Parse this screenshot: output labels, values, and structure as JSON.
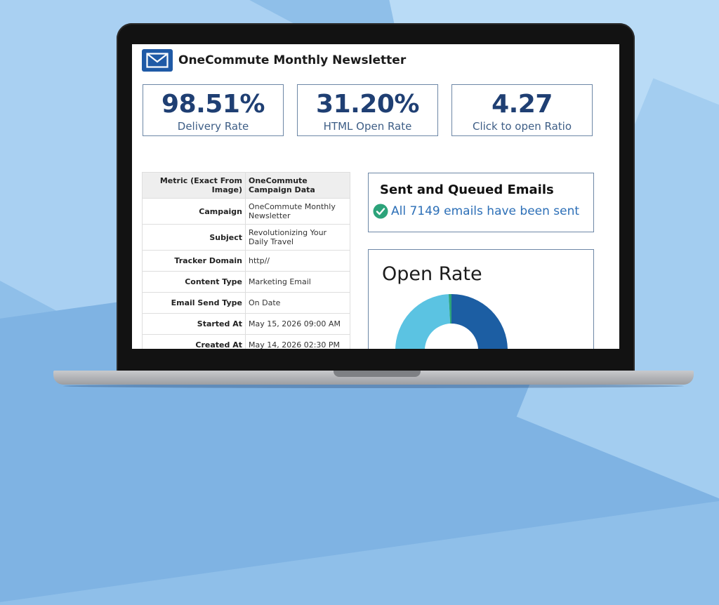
{
  "header": {
    "title": "OneCommute Monthly Newsletter"
  },
  "stats": [
    {
      "value": "98.51%",
      "label": "Delivery Rate"
    },
    {
      "value": "31.20%",
      "label": "HTML Open Rate"
    },
    {
      "value": "4.27",
      "label": "Click to open Ratio"
    }
  ],
  "table": {
    "headers": [
      "Metric (Exact From Image)",
      "OneCommute Campaign Data"
    ],
    "rows": [
      {
        "key": "Campaign",
        "value": "OneCommute Monthly Newsletter"
      },
      {
        "key": "Subject",
        "value": "Revolutionizing Your Daily Travel"
      },
      {
        "key": "Tracker Domain",
        "value": "http//"
      },
      {
        "key": "Content Type",
        "value": "Marketing Email"
      },
      {
        "key": "Email Send Type",
        "value": "On Date"
      },
      {
        "key": "Started At",
        "value": "May 15, 2026 09:00 AM"
      },
      {
        "key": "Created At",
        "value": "May 14, 2026 02:30 PM"
      }
    ]
  },
  "sent_card": {
    "title": "Sent and Queued Emails",
    "status": "All 7149 emails have been sent"
  },
  "open_rate_card": {
    "title": "Open Rate"
  },
  "chart_data": {
    "type": "pie",
    "title": "Open Rate",
    "slices": [
      {
        "value": 50,
        "color": "#1c5ea3"
      },
      {
        "value": 49.2,
        "color": "#5bc3e2"
      },
      {
        "value": 0.8,
        "color": "#2ca37a"
      }
    ]
  },
  "colors": {
    "accent": "#1f3f73",
    "label": "#3e5e86",
    "link": "#2c6fb7",
    "check": "#2ca37a"
  },
  "icons": {
    "header": "mail-icon",
    "status": "check-circle-icon"
  }
}
